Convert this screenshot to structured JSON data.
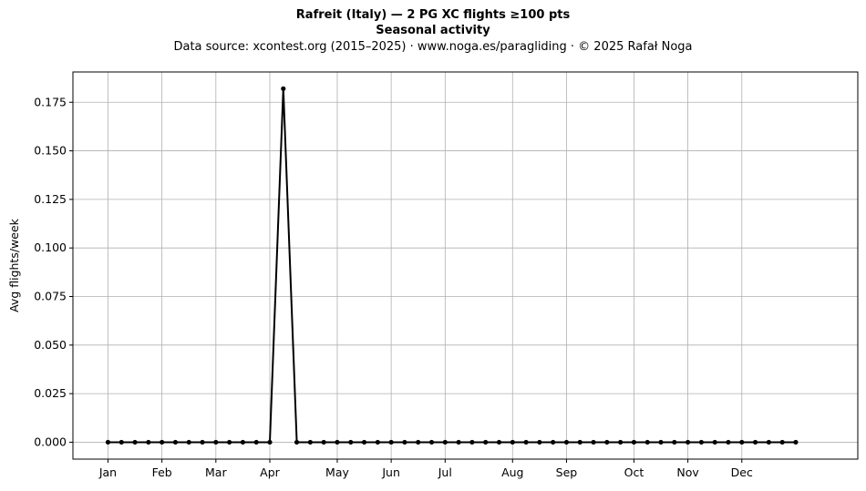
{
  "header": {
    "title": "Rafreit (Italy)  —  2 PG XC flights ≥100 pts",
    "subtitle": "Seasonal activity",
    "source": "Data source: xcontest.org (2015–2025)  ·  www.noga.es/paragliding  ·  © 2025 Rafał Noga"
  },
  "chart_data": {
    "type": "line",
    "title": "Rafreit (Italy)  —  2 PG XC flights ≥100 pts",
    "subtitle": "Seasonal activity",
    "xlabel": "",
    "ylabel": "Avg flights/week",
    "x_tick_labels": [
      "Jan",
      "Feb",
      "Mar",
      "Apr",
      "May",
      "Jun",
      "Jul",
      "Aug",
      "Sep",
      "Oct",
      "Nov",
      "Dec"
    ],
    "x_tick_weeks": [
      1,
      5,
      9,
      13,
      18,
      22,
      26,
      31,
      35,
      40,
      44,
      48
    ],
    "y_ticks": [
      "0.000",
      "0.025",
      "0.050",
      "0.075",
      "0.100",
      "0.125",
      "0.150",
      "0.175"
    ],
    "ylim": [
      -0.0087,
      0.1906
    ],
    "xlim": [
      -1.6,
      56.6
    ],
    "grid": true,
    "line_color": "#000000",
    "x": [
      1,
      2,
      3,
      4,
      5,
      6,
      7,
      8,
      9,
      10,
      11,
      12,
      13,
      14,
      15,
      16,
      17,
      18,
      19,
      20,
      21,
      22,
      23,
      24,
      25,
      26,
      27,
      28,
      29,
      30,
      31,
      32,
      33,
      34,
      35,
      36,
      37,
      38,
      39,
      40,
      41,
      42,
      43,
      44,
      45,
      46,
      47,
      48,
      49,
      50,
      51,
      52
    ],
    "values": [
      0,
      0,
      0,
      0,
      0,
      0,
      0,
      0,
      0,
      0,
      0,
      0,
      0,
      0.182,
      0,
      0,
      0,
      0,
      0,
      0,
      0,
      0,
      0,
      0,
      0,
      0,
      0,
      0,
      0,
      0,
      0,
      0,
      0,
      0,
      0,
      0,
      0,
      0,
      0,
      0,
      0,
      0,
      0,
      0,
      0,
      0,
      0,
      0,
      0,
      0,
      0,
      0
    ]
  }
}
